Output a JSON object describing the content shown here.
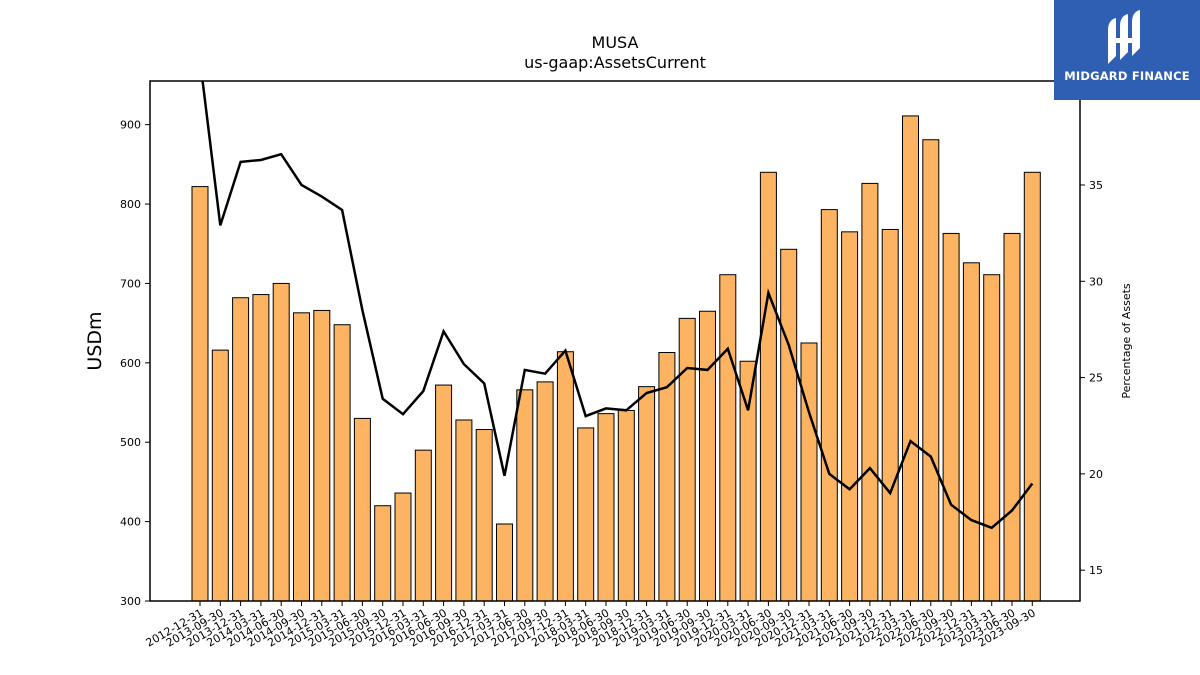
{
  "chart_data": {
    "type": "bar",
    "title": "MUSA",
    "subtitle": "us-gaap:AssetsCurrent",
    "ylabel": "USDm",
    "y2label": "Percentage of Assets",
    "ylim": [
      300,
      955
    ],
    "y2lim": [
      13.4,
      40.4
    ],
    "yticks": [
      300,
      400,
      500,
      600,
      700,
      800,
      900
    ],
    "y2ticks": [
      15,
      20,
      25,
      30,
      35
    ],
    "bar_color": "#fdb462",
    "line_color": "#000000",
    "categories": [
      "2012-12-31",
      "2013-09-30",
      "2013-12-31",
      "2014-03-31",
      "2014-06-30",
      "2014-09-30",
      "2014-12-31",
      "2015-03-31",
      "2015-06-30",
      "2015-09-30",
      "2015-12-31",
      "2016-03-31",
      "2016-06-30",
      "2016-09-30",
      "2016-12-31",
      "2017-03-31",
      "2017-06-30",
      "2017-09-30",
      "2017-12-31",
      "2018-03-31",
      "2018-06-30",
      "2018-09-30",
      "2018-12-31",
      "2019-03-31",
      "2019-06-30",
      "2019-09-30",
      "2019-12-31",
      "2020-03-31",
      "2020-06-30",
      "2020-09-30",
      "2020-12-31",
      "2021-03-31",
      "2021-06-30",
      "2021-09-30",
      "2021-12-31",
      "2022-03-31",
      "2022-06-30",
      "2022-09-30",
      "2022-12-31",
      "2023-03-31",
      "2023-06-30",
      "2023-09-30"
    ],
    "series": [
      {
        "kind": "bar",
        "values": [
          822,
          616,
          682,
          686,
          700,
          663,
          666,
          648,
          530,
          420,
          436,
          490,
          572,
          528,
          516,
          397,
          566,
          576,
          614,
          518,
          536,
          540,
          570,
          613,
          656,
          665,
          711,
          602,
          840,
          743,
          625,
          793,
          765,
          826,
          768,
          911,
          881,
          763,
          726,
          711,
          763,
          840
        ]
      },
      {
        "kind": "line",
        "axis": "right",
        "values": [
          41.5,
          32.9,
          36.2,
          36.3,
          36.6,
          35.0,
          34.4,
          33.7,
          28.5,
          23.9,
          23.1,
          24.3,
          27.4,
          25.7,
          24.7,
          19.9,
          25.4,
          25.2,
          26.4,
          23.0,
          23.4,
          23.3,
          24.2,
          24.5,
          25.5,
          25.4,
          26.5,
          23.3,
          29.4,
          26.7,
          23.2,
          20.0,
          19.2,
          20.3,
          19.0,
          21.7,
          20.9,
          18.4,
          17.6,
          17.2,
          18.1,
          19.5
        ]
      }
    ]
  },
  "logo": {
    "text": "MIDGARD FINANCE"
  }
}
